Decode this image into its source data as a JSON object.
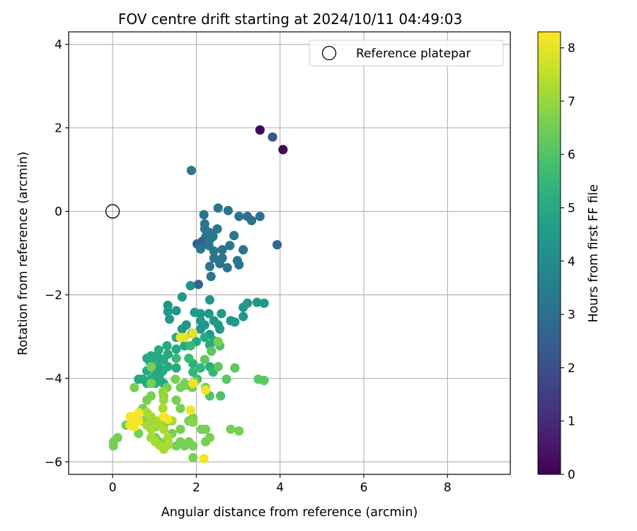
{
  "chart_data": {
    "type": "scatter",
    "title": "FOV centre drift starting at 2024/10/11 04:49:03",
    "xlabel": "Angular distance from reference (arcmin)",
    "ylabel": "Rotation from reference (arcmin)",
    "xlim": [
      -1.05,
      9.5
    ],
    "ylim": [
      -6.3,
      4.3
    ],
    "xticks": [
      0,
      2,
      4,
      6,
      8
    ],
    "yticks": [
      -6,
      -4,
      -2,
      0,
      2,
      4
    ],
    "grid": true,
    "legend": {
      "position": "top-right",
      "entries": [
        "Reference platepar"
      ]
    },
    "reference_point": {
      "x": 0,
      "y": 0,
      "marker": "open-circle",
      "color": "#000000"
    },
    "colorbar": {
      "label": "Hours from first FF file",
      "range": [
        0,
        8.3
      ],
      "ticks": [
        0,
        1,
        2,
        3,
        4,
        5,
        6,
        7,
        8
      ],
      "colormap": "viridis"
    },
    "points": [
      [
        3.52,
        1.95,
        0.15
      ],
      [
        4.07,
        1.48,
        0.2
      ],
      [
        3.82,
        1.78,
        2.3
      ],
      [
        1.88,
        0.98,
        3.3
      ],
      [
        3.93,
        -0.8,
        2.8
      ],
      [
        3.02,
        -0.12,
        3.1
      ],
      [
        3.22,
        -0.12,
        3.1
      ],
      [
        3.32,
        -0.22,
        3.1
      ],
      [
        3.52,
        -0.12,
        3.1
      ],
      [
        2.52,
        0.08,
        3.2
      ],
      [
        2.76,
        0.02,
        3.2
      ],
      [
        2.18,
        -0.08,
        3.2
      ],
      [
        2.9,
        -0.58,
        3.2
      ],
      [
        2.62,
        -0.92,
        3.2
      ],
      [
        3.12,
        -0.92,
        3.2
      ],
      [
        2.2,
        -0.3,
        3.25
      ],
      [
        2.3,
        -0.5,
        3.25
      ],
      [
        2.4,
        -0.6,
        3.25
      ],
      [
        2.5,
        -0.42,
        3.25
      ],
      [
        2.2,
        -0.42,
        3.25
      ],
      [
        2.22,
        -0.62,
        3.25
      ],
      [
        2.3,
        -0.82,
        3.25
      ],
      [
        2.14,
        -0.72,
        2.6
      ],
      [
        2.02,
        -0.78,
        2.6
      ],
      [
        2.1,
        -0.9,
        3.25
      ],
      [
        2.42,
        -1.12,
        3.25
      ],
      [
        2.62,
        -1.12,
        3.25
      ],
      [
        2.56,
        -1.25,
        3.25
      ],
      [
        2.32,
        -1.32,
        3.25
      ],
      [
        2.74,
        -1.35,
        3.25
      ],
      [
        2.98,
        -1.18,
        3.25
      ],
      [
        3.02,
        -1.28,
        3.25
      ],
      [
        2.8,
        -0.82,
        3.25
      ],
      [
        2.35,
        -1.56,
        3.25
      ],
      [
        2.42,
        -0.95,
        3.25
      ],
      [
        2.32,
        -0.68,
        3.25
      ],
      [
        2.05,
        -1.75,
        2.6
      ],
      [
        1.86,
        -1.78,
        4.2
      ],
      [
        2.32,
        -2.12,
        4.4
      ],
      [
        1.66,
        -2.05,
        4.4
      ],
      [
        1.32,
        -2.25,
        4.3
      ],
      [
        1.32,
        -2.4,
        4.4
      ],
      [
        1.52,
        -2.38,
        4.4
      ],
      [
        1.36,
        -2.58,
        4.4
      ],
      [
        1.96,
        -2.42,
        4.4
      ],
      [
        2.1,
        -2.45,
        4.4
      ],
      [
        2.3,
        -2.45,
        4.4
      ],
      [
        2.6,
        -2.45,
        4.4
      ],
      [
        2.1,
        -2.62,
        4.4
      ],
      [
        2.2,
        -2.72,
        4.4
      ],
      [
        2.42,
        -2.62,
        4.4
      ],
      [
        2.52,
        -2.72,
        4.4
      ],
      [
        1.76,
        -2.72,
        4.4
      ],
      [
        1.9,
        -2.92,
        4.4
      ],
      [
        1.66,
        -2.82,
        4.4
      ],
      [
        2.1,
        -2.82,
        4.4
      ],
      [
        2.32,
        -2.95,
        4.4
      ],
      [
        2.56,
        -2.82,
        4.4
      ],
      [
        3.12,
        -2.3,
        4.4
      ],
      [
        3.22,
        -2.2,
        4.4
      ],
      [
        3.45,
        -2.18,
        4.4
      ],
      [
        3.62,
        -2.2,
        4.4
      ],
      [
        2.92,
        -2.65,
        4.4
      ],
      [
        3.12,
        -2.52,
        4.4
      ],
      [
        2.82,
        -2.62,
        4.4
      ],
      [
        1.52,
        -3.02,
        5.0
      ],
      [
        1.3,
        -3.22,
        5.0
      ],
      [
        1.1,
        -3.32,
        5.0
      ],
      [
        1.32,
        -3.42,
        5.0
      ],
      [
        1.52,
        -3.3,
        5.0
      ],
      [
        1.72,
        -3.22,
        5.0
      ],
      [
        0.82,
        -3.52,
        5.0
      ],
      [
        0.92,
        -3.46,
        5.0
      ],
      [
        1.0,
        -3.5,
        5.0
      ],
      [
        1.12,
        -3.52,
        5.0
      ],
      [
        1.22,
        -3.55,
        5.0
      ],
      [
        1.32,
        -3.72,
        5.0
      ],
      [
        1.52,
        -3.75,
        5.0
      ],
      [
        0.9,
        -3.62,
        5.0
      ],
      [
        1.0,
        -3.72,
        5.0
      ],
      [
        1.1,
        -3.72,
        5.0
      ],
      [
        1.2,
        -3.82,
        5.0
      ],
      [
        0.82,
        -3.82,
        5.0
      ],
      [
        0.62,
        -4.02,
        5.0
      ],
      [
        0.72,
        -4.02,
        5.0
      ],
      [
        0.82,
        -4.12,
        5.0
      ],
      [
        0.92,
        -4.02,
        5.0
      ],
      [
        1.02,
        -4.12,
        5.0
      ],
      [
        1.12,
        -4.02,
        5.0
      ],
      [
        1.22,
        -4.12,
        5.0
      ],
      [
        1.02,
        -3.92,
        5.0
      ],
      [
        1.12,
        -3.92,
        5.0
      ],
      [
        2.0,
        -3.12,
        5.0
      ],
      [
        2.2,
        -3.02,
        5.0
      ],
      [
        2.42,
        -3.1,
        5.0
      ],
      [
        2.32,
        -3.2,
        5.0
      ],
      [
        1.92,
        -3.65,
        5.2
      ],
      [
        2.32,
        -3.72,
        5.2
      ],
      [
        2.4,
        -3.85,
        5.5
      ],
      [
        2.1,
        -3.75,
        5.5
      ],
      [
        1.92,
        -3.85,
        5.5
      ],
      [
        1.82,
        -3.52,
        5.6
      ],
      [
        1.86,
        -3.22,
        5.6
      ],
      [
        1.52,
        -3.52,
        5.6
      ],
      [
        2.02,
        -4.02,
        5.7
      ],
      [
        2.32,
        -4.42,
        6.0
      ],
      [
        2.58,
        -4.42,
        6.0
      ],
      [
        2.72,
        -4.02,
        6.2
      ],
      [
        2.92,
        -3.75,
        6.2
      ],
      [
        2.52,
        -3.72,
        6.2
      ],
      [
        2.2,
        -3.55,
        6.2
      ],
      [
        2.36,
        -3.35,
        6.2
      ],
      [
        2.56,
        -3.22,
        6.0
      ],
      [
        3.48,
        -4.02,
        6.2
      ],
      [
        3.62,
        -4.05,
        6.2
      ],
      [
        1.5,
        -4.02,
        6.6
      ],
      [
        1.62,
        -4.22,
        6.6
      ],
      [
        1.76,
        -4.16,
        6.6
      ],
      [
        1.96,
        -4.08,
        6.6
      ],
      [
        1.9,
        -4.22,
        6.6
      ],
      [
        1.3,
        -4.22,
        6.6
      ],
      [
        1.52,
        -4.52,
        6.6
      ],
      [
        1.62,
        -4.72,
        6.6
      ],
      [
        1.22,
        -4.42,
        6.6
      ],
      [
        0.92,
        -4.42,
        6.6
      ],
      [
        0.82,
        -4.52,
        6.6
      ],
      [
        0.72,
        -4.72,
        6.6
      ],
      [
        0.82,
        -4.82,
        6.6
      ],
      [
        0.62,
        -5.02,
        6.6
      ],
      [
        0.42,
        -5.12,
        6.6
      ],
      [
        0.32,
        -5.12,
        6.6
      ],
      [
        0.72,
        -5.02,
        6.6
      ],
      [
        0.82,
        -5.12,
        6.6
      ],
      [
        0.92,
        -5.02,
        6.6
      ],
      [
        1.02,
        -5.16,
        6.6
      ],
      [
        0.62,
        -5.32,
        6.6
      ],
      [
        1.22,
        -5.12,
        6.6
      ],
      [
        1.32,
        -5.02,
        6.6
      ],
      [
        1.42,
        -5.32,
        6.6
      ],
      [
        1.62,
        -5.22,
        6.6
      ],
      [
        1.82,
        -5.02,
        6.6
      ],
      [
        1.92,
        -4.95,
        6.6
      ],
      [
        2.12,
        -5.22,
        6.6
      ],
      [
        2.22,
        -5.22,
        6.6
      ],
      [
        2.32,
        -5.42,
        6.6
      ],
      [
        2.22,
        -5.52,
        6.6
      ],
      [
        1.52,
        -5.62,
        6.6
      ],
      [
        1.62,
        -5.52,
        6.6
      ],
      [
        1.72,
        -5.62,
        6.6
      ],
      [
        1.82,
        -5.52,
        6.6
      ],
      [
        1.92,
        -5.62,
        6.6
      ],
      [
        1.92,
        -5.9,
        6.6
      ],
      [
        1.02,
        -5.42,
        6.6
      ],
      [
        1.12,
        -5.52,
        6.6
      ],
      [
        1.22,
        -5.62,
        6.6
      ],
      [
        1.32,
        -5.52,
        6.6
      ],
      [
        0.92,
        -5.42,
        6.6
      ],
      [
        0.02,
        -5.52,
        6.6
      ],
      [
        0.02,
        -5.62,
        6.6
      ],
      [
        0.12,
        -5.42,
        6.6
      ],
      [
        2.82,
        -5.22,
        6.6
      ],
      [
        3.02,
        -5.26,
        6.6
      ],
      [
        0.52,
        -4.22,
        6.6
      ],
      [
        2.52,
        -3.12,
        6.6
      ],
      [
        0.92,
        -4.12,
        6.6
      ],
      [
        1.72,
        -4.12,
        6.6
      ],
      [
        2.22,
        -4.22,
        6.6
      ],
      [
        0.92,
        -3.72,
        6.6
      ],
      [
        1.92,
        -5.05,
        6.8
      ],
      [
        1.2,
        -4.32,
        7.0
      ],
      [
        1.22,
        -4.52,
        7.0
      ],
      [
        1.2,
        -4.72,
        7.2
      ],
      [
        0.82,
        -5.12,
        7.2
      ],
      [
        0.92,
        -4.92,
        7.2
      ],
      [
        1.02,
        -5.02,
        7.2
      ],
      [
        1.12,
        -5.12,
        7.2
      ],
      [
        1.22,
        -4.92,
        7.2
      ],
      [
        1.42,
        -5.02,
        7.2
      ],
      [
        0.92,
        -5.22,
        7.2
      ],
      [
        0.92,
        -5.42,
        7.2
      ],
      [
        1.02,
        -5.52,
        7.2
      ],
      [
        1.12,
        -5.6,
        7.2
      ],
      [
        1.22,
        -5.7,
        7.2
      ],
      [
        1.32,
        -5.6,
        7.2
      ],
      [
        1.32,
        -5.42,
        7.2
      ],
      [
        1.22,
        -5.22,
        7.2
      ],
      [
        1.12,
        -5.02,
        7.2
      ],
      [
        0.82,
        -4.82,
        7.2
      ],
      [
        1.62,
        -3.02,
        8.0
      ],
      [
        1.72,
        -3.02,
        8.0
      ],
      [
        1.92,
        -2.92,
        8.0
      ],
      [
        1.92,
        -4.12,
        8.1
      ],
      [
        1.86,
        -4.76,
        8.1
      ],
      [
        2.22,
        -4.28,
        8.1
      ],
      [
        0.52,
        -5.02,
        8.2
      ],
      [
        0.42,
        -4.92,
        8.2
      ],
      [
        0.52,
        -4.92,
        8.2
      ],
      [
        0.62,
        -5.02,
        8.2
      ],
      [
        0.42,
        -5.12,
        8.2
      ],
      [
        0.52,
        -5.16,
        8.2
      ],
      [
        0.62,
        -4.82,
        8.2
      ],
      [
        1.22,
        -4.92,
        8.2
      ],
      [
        1.32,
        -4.98,
        8.2
      ],
      [
        2.18,
        -5.92,
        8.2
      ]
    ]
  }
}
